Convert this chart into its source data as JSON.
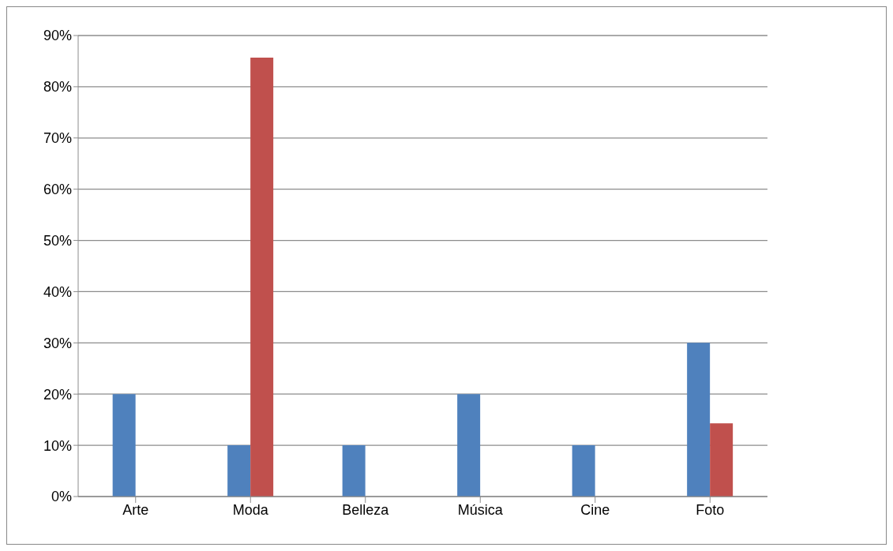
{
  "chart_data": {
    "type": "bar",
    "categories": [
      "Arte",
      "Moda",
      "Belleza",
      "Música",
      "Cine",
      "Foto"
    ],
    "series": [
      {
        "color": "#4f81bd",
        "values": [
          20,
          10,
          10,
          20,
          10,
          30
        ]
      },
      {
        "color": "#c0504d",
        "values": [
          0,
          85.7,
          0,
          0,
          0,
          14.3
        ]
      }
    ],
    "ylim": [
      0,
      90
    ],
    "yticks": [
      {
        "value": 0,
        "label": "0%"
      },
      {
        "value": 10,
        "label": "10%"
      },
      {
        "value": 20,
        "label": "20%"
      },
      {
        "value": 30,
        "label": "30%"
      },
      {
        "value": 40,
        "label": "40%"
      },
      {
        "value": 50,
        "label": "50%"
      },
      {
        "value": 60,
        "label": "60%"
      },
      {
        "value": 70,
        "label": "70%"
      },
      {
        "value": 80,
        "label": "80%"
      },
      {
        "value": 90,
        "label": "90%"
      }
    ],
    "grid": "y"
  }
}
